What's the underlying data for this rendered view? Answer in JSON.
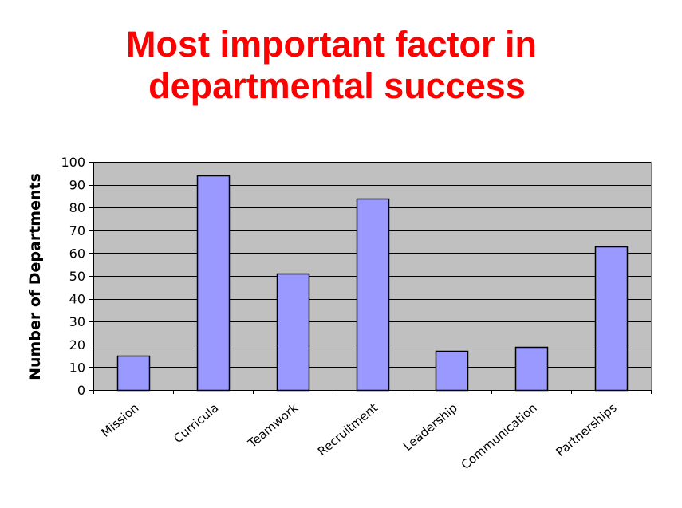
{
  "chart_data": {
    "type": "bar",
    "title_lines": [
      "Most important factor in",
      "departmental success"
    ],
    "xlabel": "",
    "ylabel": "Number of Departments",
    "categories": [
      "Mission",
      "Curricula",
      "Teamwork",
      "Recruitment",
      "Leadership",
      "Communication",
      "Partnerships"
    ],
    "values": [
      15,
      94,
      51,
      84,
      17,
      19,
      63
    ],
    "ylim": [
      0,
      100
    ],
    "yticks": [
      0,
      10,
      20,
      30,
      40,
      50,
      60,
      70,
      80,
      90,
      100
    ],
    "grid": true,
    "legend": "none",
    "colors": {
      "title": "#ff0000",
      "plot_background": "#c0c0c0",
      "bar_fill": "#9999ff",
      "bar_stroke": "#000000",
      "gridline": "#000000"
    }
  }
}
